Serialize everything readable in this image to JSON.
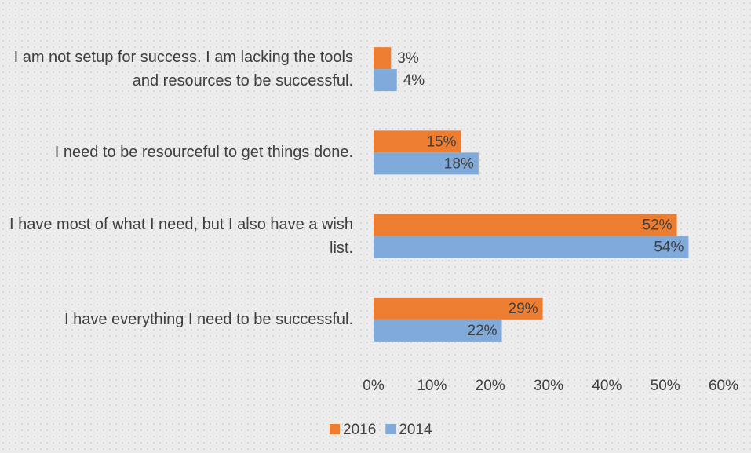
{
  "chart_data": {
    "type": "bar",
    "orientation": "horizontal",
    "categories": [
      "I am not setup for success. I am lacking the tools and resources to be successful.",
      "I need to be resourceful to get things done.",
      "I have most of what I need, but I also have a wish list.",
      "I have everything I need to be successful."
    ],
    "series": [
      {
        "name": "2016",
        "color": "#ed7d31",
        "values": [
          3,
          15,
          52,
          29
        ],
        "value_labels": [
          "3%",
          "15%",
          "52%",
          "29%"
        ]
      },
      {
        "name": "2014",
        "color": "#7faad9",
        "values": [
          4,
          18,
          54,
          22
        ],
        "value_labels": [
          "4%",
          "18%",
          "54%",
          "22%"
        ]
      }
    ],
    "xlim": [
      0,
      60
    ],
    "xticks": [
      {
        "value": 0,
        "label": "0%"
      },
      {
        "value": 10,
        "label": "10%"
      },
      {
        "value": 20,
        "label": "20%"
      },
      {
        "value": 30,
        "label": "30%"
      },
      {
        "value": 40,
        "label": "40%"
      },
      {
        "value": 50,
        "label": "50%"
      },
      {
        "value": 60,
        "label": "60%"
      }
    ],
    "grid": false,
    "legend": "bottom"
  }
}
